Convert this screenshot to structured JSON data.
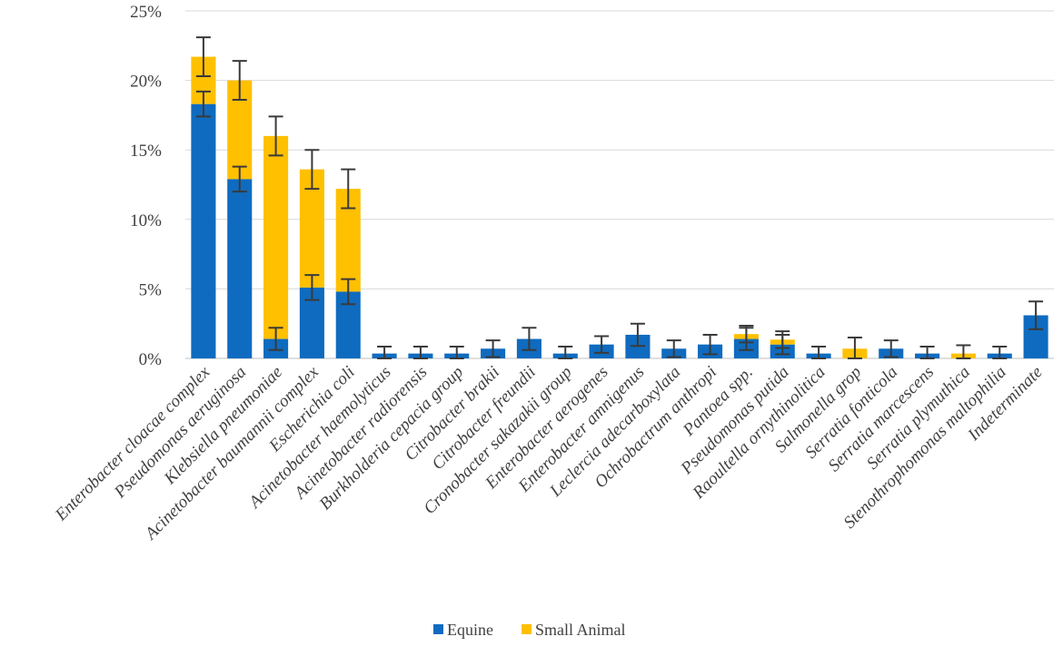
{
  "chart_data": {
    "type": "bar",
    "stacked": true,
    "title": "",
    "xlabel": "",
    "ylabel": "",
    "ylim": [
      0,
      25
    ],
    "yticks": [
      0,
      5,
      10,
      15,
      20,
      25
    ],
    "ytick_labels": [
      "0%",
      "5%",
      "10%",
      "15%",
      "20%",
      "25%"
    ],
    "grid": true,
    "legend_position": "bottom",
    "categories": [
      "Enterobacter cloacae complex",
      "Pseudomonas aeruginosa",
      "Klebsiella pneumoniae",
      "Acinetobacter baumannii complex",
      "Escherichia coli",
      "Acinetobacter haemolyticus",
      "Acinetobacter radiorensis",
      "Burkholderia cepacia group",
      "Citrobacter brakii",
      "Citrobacter freundii",
      "Cronobacter sakazakii group",
      "Enterobacter aerogenes",
      "Enterobacter amnigenus",
      "Leclercia adecarboxylata",
      "Ochrobactrum anthropi",
      "Pantoea spp.",
      "Pseudomonas putida",
      "Raoultella ornythinolitica",
      "Salmonella grop",
      "Serratia fonticola",
      "Serratia marcescens",
      "Serratia plymuthica",
      "Stenothrophomonas maltophilia",
      "Indeterminate"
    ],
    "series": [
      {
        "name": "Equine",
        "color": "#0F6BBF",
        "values": [
          18.3,
          12.9,
          1.4,
          5.1,
          4.8,
          0.35,
          0.35,
          0.35,
          0.7,
          1.4,
          0.35,
          1.0,
          1.7,
          0.7,
          1.0,
          1.4,
          1.0,
          0.35,
          0.0,
          0.7,
          0.35,
          0.0,
          0.35,
          3.1
        ],
        "error": [
          0.9,
          0.9,
          0.8,
          0.9,
          0.9,
          0.5,
          0.5,
          0.5,
          0.6,
          0.8,
          0.5,
          0.6,
          0.8,
          0.6,
          0.7,
          0.8,
          0.7,
          0.5,
          0.0,
          0.6,
          0.5,
          0.0,
          0.5,
          1.0
        ]
      },
      {
        "name": "Small Animal",
        "color": "#FFC000",
        "values": [
          3.4,
          7.1,
          14.6,
          8.5,
          7.4,
          0.0,
          0.0,
          0.0,
          0.0,
          0.0,
          0.0,
          0.0,
          0.0,
          0.0,
          0.0,
          0.35,
          0.35,
          0.0,
          0.7,
          0.0,
          0.0,
          0.35,
          0.0,
          0.0
        ],
        "error": [
          1.4,
          1.4,
          1.4,
          1.4,
          1.4,
          0.0,
          0.0,
          0.0,
          0.0,
          0.0,
          0.0,
          0.0,
          0.0,
          0.0,
          0.0,
          0.6,
          0.6,
          0.0,
          0.8,
          0.0,
          0.0,
          0.6,
          0.0,
          0.0
        ]
      }
    ]
  }
}
